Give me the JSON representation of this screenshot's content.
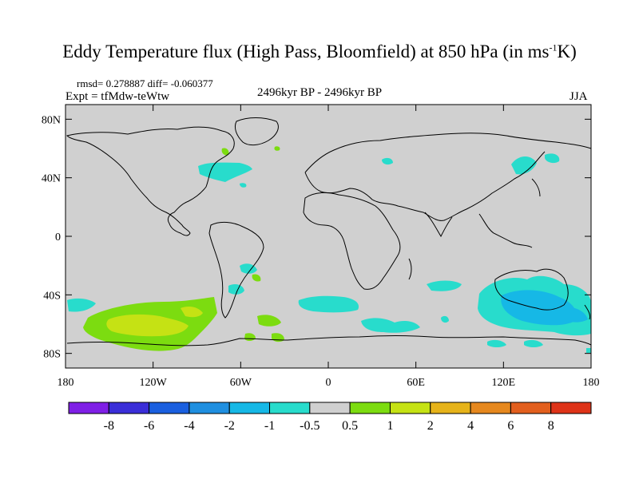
{
  "title": {
    "main": "Eddy Temperature flux (High Pass, Bloomfield) at 850 hPa (in ms",
    "sup": "-1",
    "tail": "K)"
  },
  "stats": {
    "rmsd_diff": "rmsd= 0.278887 diff= -0.060377",
    "expt": "Expt = tfMdw-teWtw",
    "period": "2496kyr BP - 2496kyr BP",
    "season": "JJA"
  },
  "map": {
    "background": "#d0d0d0",
    "lat_labels": [
      "80N",
      "40N",
      "0",
      "40S",
      "80S"
    ],
    "lat_values": [
      80,
      40,
      0,
      -40,
      -80
    ],
    "lon_labels": [
      "180",
      "120W",
      "60W",
      "0",
      "60E",
      "120E",
      "180"
    ],
    "lon_values": [
      -180,
      -120,
      -60,
      0,
      60,
      120,
      180
    ]
  },
  "colorbar": {
    "labels": [
      "-8",
      "-6",
      "-4",
      "-2",
      "-1",
      "-0.5",
      "0.5",
      "1",
      "2",
      "4",
      "6",
      "8"
    ],
    "colors": [
      "#7f1fe6",
      "#3a2ed8",
      "#1a5fdf",
      "#1f8fe0",
      "#16b8e6",
      "#28dccc",
      "#d0d0d0",
      "#7cdc10",
      "#c5e214",
      "#e6b31a",
      "#e6881e",
      "#e25f1e",
      "#de3318"
    ]
  }
}
